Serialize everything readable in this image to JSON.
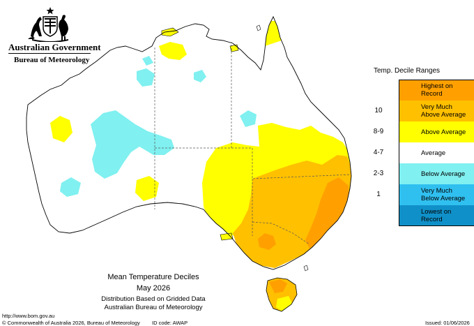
{
  "branding": {
    "crest_icon": "commonwealth-coat-of-arms-icon",
    "government": "Australian Government",
    "bureau": "Bureau of Meteorology"
  },
  "legend": {
    "title": "Temp. Decile Ranges",
    "entries": [
      {
        "code": "",
        "label": "Highest on\nRecord",
        "color": "#ffa000"
      },
      {
        "code": "10",
        "label": "Very Much\nAbove Average",
        "color": "#ffc000"
      },
      {
        "code": "8-9",
        "label": "Above Average",
        "color": "#ffff00"
      },
      {
        "code": "4-7",
        "label": "Average",
        "color": "#ffffff"
      },
      {
        "code": "2-3",
        "label": "Below Average",
        "color": "#80f0f0"
      },
      {
        "code": "1",
        "label": "Very Much\nBelow Average",
        "color": "#30c0f0"
      },
      {
        "code": "",
        "label": "Lowest on\nRecord",
        "color": "#1090c8"
      }
    ]
  },
  "caption": {
    "title": "Mean Temperature Deciles",
    "date": "May 2026",
    "subtitle1": "Distribution Based on Gridded Data",
    "subtitle2": "Australian Bureau of Meteorology"
  },
  "footer": {
    "url": "http://www.bom.gov.au",
    "copyright": "© Commonwealth of Australia 2026, Bureau of Meteorology",
    "id_code": "ID code: AWAP",
    "issued": "Issued: 01/06/2026"
  },
  "colors": {
    "highest": "#ffa000",
    "very_much_above": "#ffc000",
    "above": "#ffff00",
    "average": "#ffffff",
    "below": "#80f0f0",
    "very_much_below": "#30c0f0",
    "lowest": "#1090c8",
    "boundary": "#000000"
  }
}
